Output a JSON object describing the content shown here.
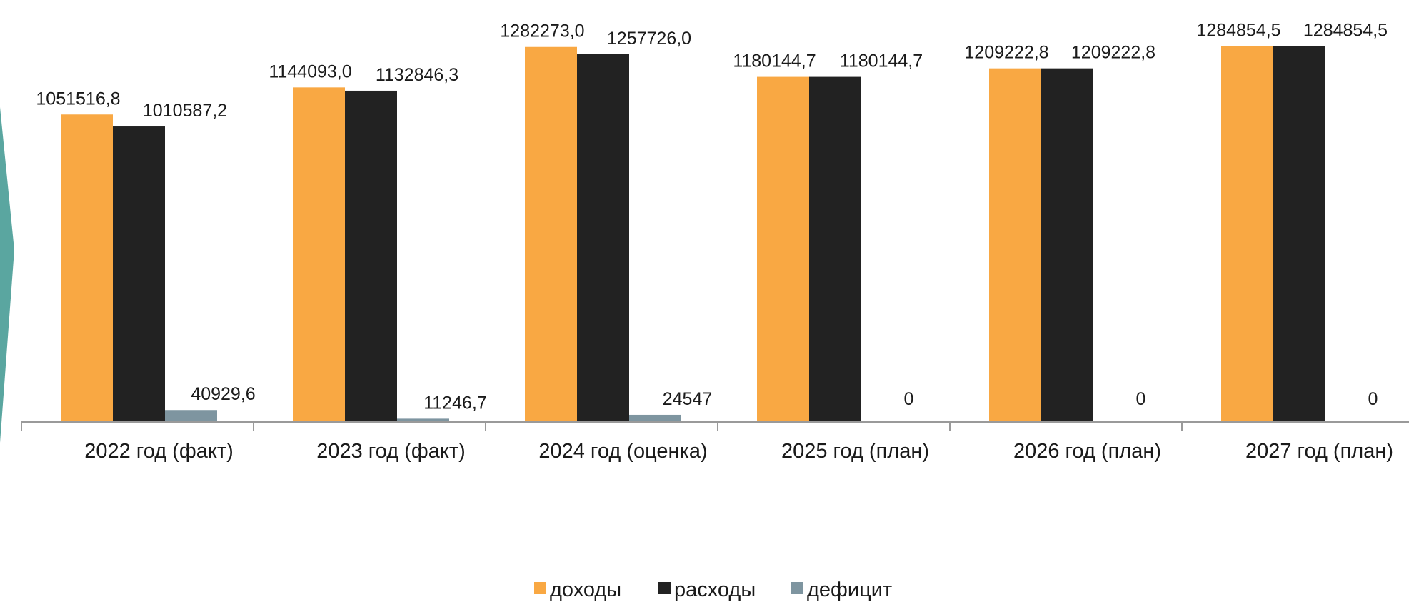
{
  "chart_data": {
    "type": "bar",
    "title": "",
    "xlabel": "",
    "ylabel": "",
    "categories": [
      "2022 год (факт)",
      "2023 год (факт)",
      "2024 год (оценка)",
      "2025 год (план)",
      "2026 год (план)",
      "2027 год (план)"
    ],
    "series": [
      {
        "name": "доходы",
        "color": "#F9A843",
        "values": [
          1051516.8,
          1144093.0,
          1282273.0,
          1180144.7,
          1209222.8,
          1284854.5
        ],
        "labels": [
          "1051516,8",
          "1144093,0",
          "1282273,0",
          "1180144,7",
          "1209222,8",
          "1284854,5"
        ]
      },
      {
        "name": "расходы",
        "color": "#222222",
        "values": [
          1010587.2,
          1132846.3,
          1257726.0,
          1180144.7,
          1209222.8,
          1284854.5
        ],
        "labels": [
          "1010587,2",
          "1132846,3",
          "1257726,0",
          "1180144,7",
          "1209222,8",
          "1284854,5"
        ]
      },
      {
        "name": "дефицит",
        "color": "#7E95A0",
        "values": [
          40929.6,
          11246.7,
          24547,
          0,
          0,
          0
        ],
        "labels": [
          "40929,6",
          "11246,7",
          "24547",
          "0",
          "0",
          "0"
        ]
      }
    ],
    "ylim": [
      0,
      1350000
    ],
    "grid": false,
    "legend": "bottom-center",
    "accent_colors": {
      "side_arrow": "#5AA6A0",
      "axis": "#9a9a9a"
    }
  }
}
